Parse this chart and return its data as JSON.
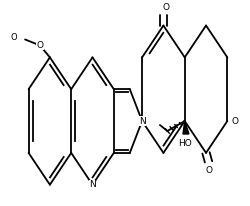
{
  "figure_width": 2.51,
  "figure_height": 2.06,
  "dpi": 100,
  "background": "#ffffff",
  "line_color": "#000000",
  "lw": 1.3,
  "atoms": {
    "N1_label": "N",
    "N2_label": "N",
    "O1_label": "O",
    "O2_label": "O",
    "O3_label": "O",
    "O4_label": "O",
    "HO_label": "HO",
    "OMe_label": "O"
  }
}
